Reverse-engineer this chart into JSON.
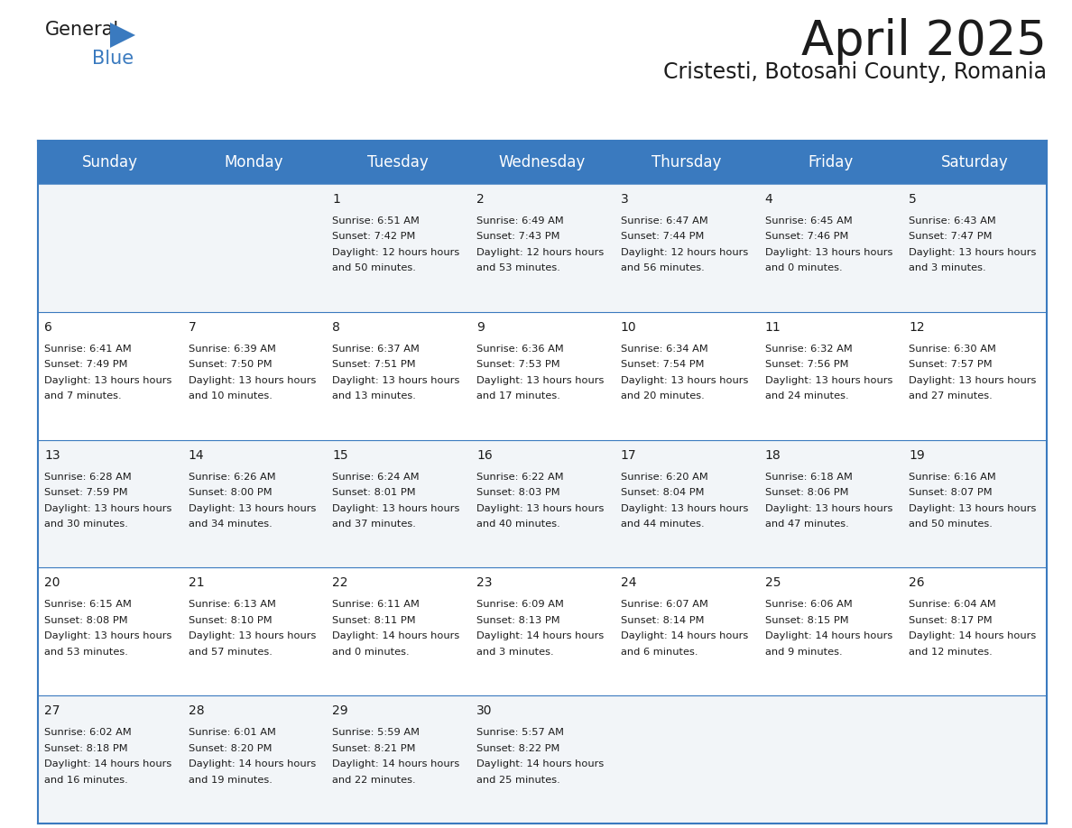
{
  "title": "April 2025",
  "subtitle": "Cristesti, Botosani County, Romania",
  "header_color": "#3a7abf",
  "header_text_color": "#ffffff",
  "row_bg_even": "#f2f5f8",
  "row_bg_odd": "#ffffff",
  "separator_color": "#3a7abf",
  "outer_border_color": "#3a7abf",
  "day_headers": [
    "Sunday",
    "Monday",
    "Tuesday",
    "Wednesday",
    "Thursday",
    "Friday",
    "Saturday"
  ],
  "title_fontsize": 38,
  "subtitle_fontsize": 17,
  "header_fontsize": 12,
  "date_fontsize": 10,
  "cell_fontsize": 8.2,
  "days": [
    {
      "date": 1,
      "col": 2,
      "row": 0,
      "sunrise": "6:51 AM",
      "sunset": "7:42 PM",
      "daylight": "12 hours and 50 minutes."
    },
    {
      "date": 2,
      "col": 3,
      "row": 0,
      "sunrise": "6:49 AM",
      "sunset": "7:43 PM",
      "daylight": "12 hours and 53 minutes."
    },
    {
      "date": 3,
      "col": 4,
      "row": 0,
      "sunrise": "6:47 AM",
      "sunset": "7:44 PM",
      "daylight": "12 hours and 56 minutes."
    },
    {
      "date": 4,
      "col": 5,
      "row": 0,
      "sunrise": "6:45 AM",
      "sunset": "7:46 PM",
      "daylight": "13 hours and 0 minutes."
    },
    {
      "date": 5,
      "col": 6,
      "row": 0,
      "sunrise": "6:43 AM",
      "sunset": "7:47 PM",
      "daylight": "13 hours and 3 minutes."
    },
    {
      "date": 6,
      "col": 0,
      "row": 1,
      "sunrise": "6:41 AM",
      "sunset": "7:49 PM",
      "daylight": "13 hours and 7 minutes."
    },
    {
      "date": 7,
      "col": 1,
      "row": 1,
      "sunrise": "6:39 AM",
      "sunset": "7:50 PM",
      "daylight": "13 hours and 10 minutes."
    },
    {
      "date": 8,
      "col": 2,
      "row": 1,
      "sunrise": "6:37 AM",
      "sunset": "7:51 PM",
      "daylight": "13 hours and 13 minutes."
    },
    {
      "date": 9,
      "col": 3,
      "row": 1,
      "sunrise": "6:36 AM",
      "sunset": "7:53 PM",
      "daylight": "13 hours and 17 minutes."
    },
    {
      "date": 10,
      "col": 4,
      "row": 1,
      "sunrise": "6:34 AM",
      "sunset": "7:54 PM",
      "daylight": "13 hours and 20 minutes."
    },
    {
      "date": 11,
      "col": 5,
      "row": 1,
      "sunrise": "6:32 AM",
      "sunset": "7:56 PM",
      "daylight": "13 hours and 24 minutes."
    },
    {
      "date": 12,
      "col": 6,
      "row": 1,
      "sunrise": "6:30 AM",
      "sunset": "7:57 PM",
      "daylight": "13 hours and 27 minutes."
    },
    {
      "date": 13,
      "col": 0,
      "row": 2,
      "sunrise": "6:28 AM",
      "sunset": "7:59 PM",
      "daylight": "13 hours and 30 minutes."
    },
    {
      "date": 14,
      "col": 1,
      "row": 2,
      "sunrise": "6:26 AM",
      "sunset": "8:00 PM",
      "daylight": "13 hours and 34 minutes."
    },
    {
      "date": 15,
      "col": 2,
      "row": 2,
      "sunrise": "6:24 AM",
      "sunset": "8:01 PM",
      "daylight": "13 hours and 37 minutes."
    },
    {
      "date": 16,
      "col": 3,
      "row": 2,
      "sunrise": "6:22 AM",
      "sunset": "8:03 PM",
      "daylight": "13 hours and 40 minutes."
    },
    {
      "date": 17,
      "col": 4,
      "row": 2,
      "sunrise": "6:20 AM",
      "sunset": "8:04 PM",
      "daylight": "13 hours and 44 minutes."
    },
    {
      "date": 18,
      "col": 5,
      "row": 2,
      "sunrise": "6:18 AM",
      "sunset": "8:06 PM",
      "daylight": "13 hours and 47 minutes."
    },
    {
      "date": 19,
      "col": 6,
      "row": 2,
      "sunrise": "6:16 AM",
      "sunset": "8:07 PM",
      "daylight": "13 hours and 50 minutes."
    },
    {
      "date": 20,
      "col": 0,
      "row": 3,
      "sunrise": "6:15 AM",
      "sunset": "8:08 PM",
      "daylight": "13 hours and 53 minutes."
    },
    {
      "date": 21,
      "col": 1,
      "row": 3,
      "sunrise": "6:13 AM",
      "sunset": "8:10 PM",
      "daylight": "13 hours and 57 minutes."
    },
    {
      "date": 22,
      "col": 2,
      "row": 3,
      "sunrise": "6:11 AM",
      "sunset": "8:11 PM",
      "daylight": "14 hours and 0 minutes."
    },
    {
      "date": 23,
      "col": 3,
      "row": 3,
      "sunrise": "6:09 AM",
      "sunset": "8:13 PM",
      "daylight": "14 hours and 3 minutes."
    },
    {
      "date": 24,
      "col": 4,
      "row": 3,
      "sunrise": "6:07 AM",
      "sunset": "8:14 PM",
      "daylight": "14 hours and 6 minutes."
    },
    {
      "date": 25,
      "col": 5,
      "row": 3,
      "sunrise": "6:06 AM",
      "sunset": "8:15 PM",
      "daylight": "14 hours and 9 minutes."
    },
    {
      "date": 26,
      "col": 6,
      "row": 3,
      "sunrise": "6:04 AM",
      "sunset": "8:17 PM",
      "daylight": "14 hours and 12 minutes."
    },
    {
      "date": 27,
      "col": 0,
      "row": 4,
      "sunrise": "6:02 AM",
      "sunset": "8:18 PM",
      "daylight": "14 hours and 16 minutes."
    },
    {
      "date": 28,
      "col": 1,
      "row": 4,
      "sunrise": "6:01 AM",
      "sunset": "8:20 PM",
      "daylight": "14 hours and 19 minutes."
    },
    {
      "date": 29,
      "col": 2,
      "row": 4,
      "sunrise": "5:59 AM",
      "sunset": "8:21 PM",
      "daylight": "14 hours and 22 minutes."
    },
    {
      "date": 30,
      "col": 3,
      "row": 4,
      "sunrise": "5:57 AM",
      "sunset": "8:22 PM",
      "daylight": "14 hours and 25 minutes."
    }
  ]
}
